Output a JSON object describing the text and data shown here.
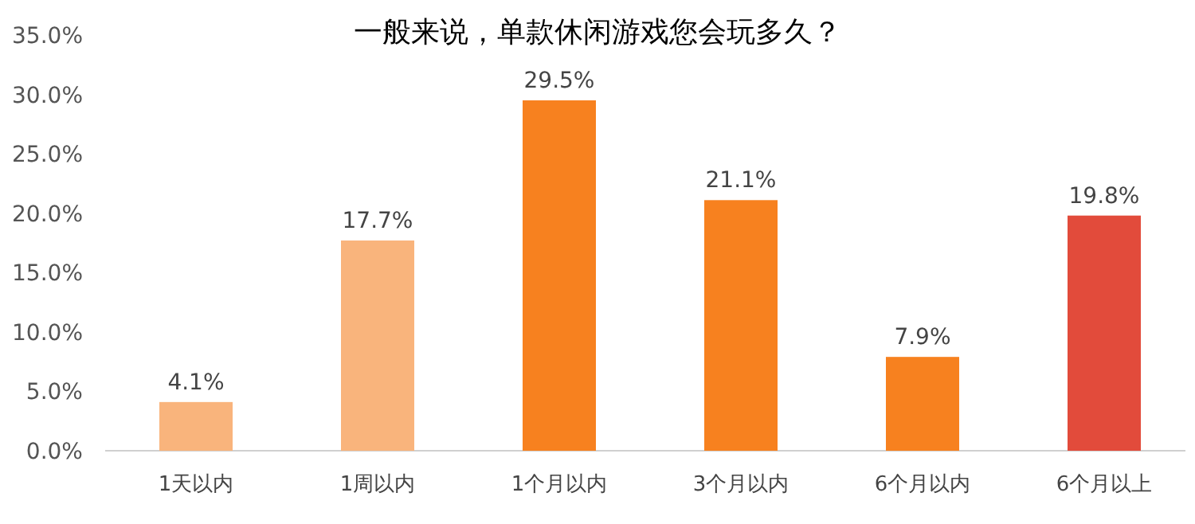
{
  "chart_data": {
    "type": "bar",
    "title": "一般来说，单款休闲游戏您会玩多久？",
    "categories": [
      "1天以内",
      "1周以内",
      "1个月以内",
      "3个月以内",
      "6个月以内",
      "6个月以上"
    ],
    "values": [
      4.1,
      17.7,
      29.5,
      21.1,
      7.9,
      19.8
    ],
    "colors": [
      "#f9b47c",
      "#f9b47c",
      "#f7811f",
      "#f7811f",
      "#f7811f",
      "#e24b3b"
    ],
    "value_labels": [
      "4.1%",
      "17.7%",
      "29.5%",
      "21.1%",
      "7.9%",
      "19.8%"
    ],
    "ylim": [
      0,
      35
    ],
    "yticks": [
      {
        "value": 0,
        "label": "0.0%"
      },
      {
        "value": 5,
        "label": "5.0%"
      },
      {
        "value": 10,
        "label": "10.0%"
      },
      {
        "value": 15,
        "label": "15.0%"
      },
      {
        "value": 20,
        "label": "20.0%"
      },
      {
        "value": 25,
        "label": "25.0%"
      },
      {
        "value": 30,
        "label": "30.0%"
      },
      {
        "value": 35,
        "label": "35.0%"
      }
    ]
  }
}
